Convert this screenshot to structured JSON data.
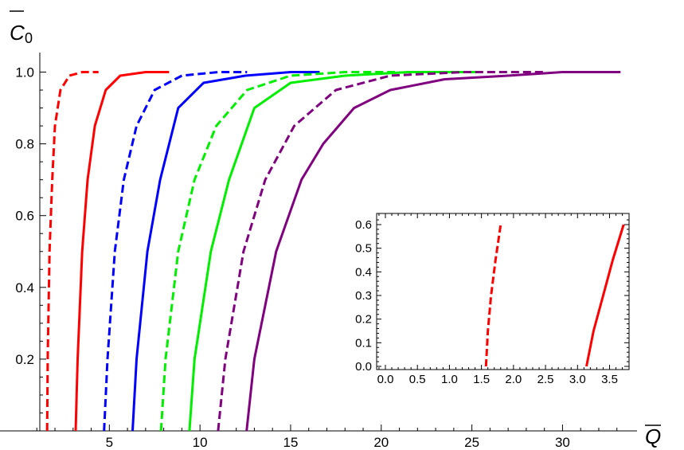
{
  "chart_data": [
    {
      "type": "line",
      "xlabel": "Q",
      "ylabel": "C",
      "ylabel_subscript": "0",
      "xlim": [
        0,
        34
      ],
      "ylim": [
        0,
        1.05
      ],
      "x_ticks": [
        5,
        10,
        15,
        20,
        25,
        30
      ],
      "x_tick_labels": [
        "5",
        "10",
        "15",
        "20",
        "25",
        "30"
      ],
      "y_ticks": [
        0.2,
        0.4,
        0.6,
        0.8,
        1.0
      ],
      "y_tick_labels": [
        "0.2",
        "0.4",
        "0.6",
        "0.8",
        "1.0"
      ],
      "grid": false,
      "series": [
        {
          "color": "#ff0000",
          "dash": true,
          "points": [
            [
              1.57,
              0
            ],
            [
              1.6,
              0.2
            ],
            [
              1.7,
              0.5
            ],
            [
              1.85,
              0.7
            ],
            [
              2.0,
              0.85
            ],
            [
              2.3,
              0.95
            ],
            [
              2.8,
              0.99
            ],
            [
              3.5,
              1.0
            ],
            [
              4.4,
              1.0
            ]
          ]
        },
        {
          "color": "#ff0000",
          "dash": false,
          "points": [
            [
              3.14,
              0
            ],
            [
              3.25,
              0.2
            ],
            [
              3.5,
              0.5
            ],
            [
              3.8,
              0.7
            ],
            [
              4.2,
              0.85
            ],
            [
              4.8,
              0.95
            ],
            [
              5.6,
              0.99
            ],
            [
              7.0,
              1.0
            ],
            [
              8.3,
              1.0
            ]
          ]
        },
        {
          "color": "#0000ff",
          "dash": true,
          "points": [
            [
              4.71,
              0
            ],
            [
              4.9,
              0.2
            ],
            [
              5.3,
              0.5
            ],
            [
              5.8,
              0.7
            ],
            [
              6.5,
              0.85
            ],
            [
              7.5,
              0.95
            ],
            [
              9.0,
              0.99
            ],
            [
              11.0,
              1.0
            ],
            [
              12.6,
              1.0
            ]
          ]
        },
        {
          "color": "#0000ff",
          "dash": false,
          "points": [
            [
              6.28,
              0
            ],
            [
              6.5,
              0.2
            ],
            [
              7.1,
              0.5
            ],
            [
              7.8,
              0.7
            ],
            [
              8.8,
              0.9
            ],
            [
              10.2,
              0.97
            ],
            [
              12.5,
              0.99
            ],
            [
              15,
              1.0
            ],
            [
              16.6,
              1.0
            ]
          ]
        },
        {
          "color": "#00ee00",
          "dash": true,
          "points": [
            [
              7.85,
              0
            ],
            [
              8.1,
              0.2
            ],
            [
              8.8,
              0.5
            ],
            [
              9.7,
              0.7
            ],
            [
              10.9,
              0.85
            ],
            [
              12.6,
              0.95
            ],
            [
              15,
              0.99
            ],
            [
              18,
              1.0
            ],
            [
              21,
              1.0
            ]
          ]
        },
        {
          "color": "#00ee00",
          "dash": false,
          "points": [
            [
              9.42,
              0
            ],
            [
              9.7,
              0.2
            ],
            [
              10.6,
              0.5
            ],
            [
              11.6,
              0.7
            ],
            [
              13.0,
              0.9
            ],
            [
              15.0,
              0.97
            ],
            [
              18,
              0.99
            ],
            [
              21.5,
              1.0
            ],
            [
              25.2,
              1.0
            ]
          ]
        },
        {
          "color": "#800080",
          "dash": true,
          "points": [
            [
              11.0,
              0
            ],
            [
              11.4,
              0.2
            ],
            [
              12.4,
              0.5
            ],
            [
              13.6,
              0.7
            ],
            [
              15.2,
              0.85
            ],
            [
              17.5,
              0.95
            ],
            [
              20.5,
              0.99
            ],
            [
              24.5,
              1.0
            ],
            [
              29,
              1.0
            ]
          ]
        },
        {
          "color": "#800080",
          "dash": false,
          "points": [
            [
              12.57,
              0
            ],
            [
              13.0,
              0.2
            ],
            [
              14.2,
              0.5
            ],
            [
              15.6,
              0.7
            ],
            [
              16.8,
              0.8
            ],
            [
              18.5,
              0.9
            ],
            [
              20.5,
              0.95
            ],
            [
              23.5,
              0.98
            ],
            [
              27,
              0.99
            ],
            [
              30,
              1.0
            ],
            [
              33.2,
              1.0
            ]
          ]
        }
      ]
    },
    {
      "type": "line",
      "title": "",
      "xlim": [
        -0.1,
        3.8
      ],
      "ylim": [
        0,
        0.62
      ],
      "x_ticks": [
        0.0,
        0.5,
        1.0,
        1.5,
        2.0,
        2.5,
        3.0,
        3.5
      ],
      "x_tick_labels": [
        "0.0",
        "0.5",
        "1.0",
        "1.5",
        "2.0",
        "2.5",
        "3.0",
        "3.5"
      ],
      "y_ticks": [
        0.0,
        0.1,
        0.2,
        0.3,
        0.4,
        0.5,
        0.6
      ],
      "y_tick_labels": [
        "0.0",
        "0.1",
        "0.2",
        "0.3",
        "0.4",
        "0.5",
        "0.6"
      ],
      "grid": false,
      "series": [
        {
          "color": "#ff0000",
          "dash": true,
          "points": [
            [
              1.57,
              0
            ],
            [
              1.6,
              0.15
            ],
            [
              1.65,
              0.3
            ],
            [
              1.72,
              0.45
            ],
            [
              1.8,
              0.6
            ]
          ]
        },
        {
          "color": "#ff0000",
          "dash": false,
          "points": [
            [
              3.14,
              0
            ],
            [
              3.25,
              0.15
            ],
            [
              3.4,
              0.3
            ],
            [
              3.55,
              0.45
            ],
            [
              3.72,
              0.6
            ]
          ]
        }
      ]
    }
  ]
}
